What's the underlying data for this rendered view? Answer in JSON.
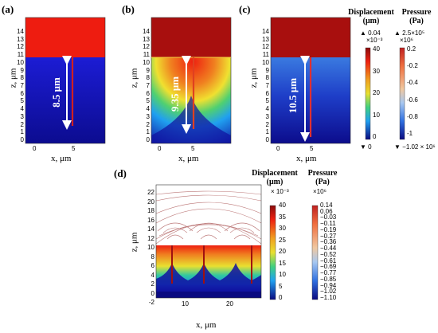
{
  "panels": {
    "a": {
      "label": "(a)",
      "xlabel": "x, μm",
      "ylabel": "z, μm",
      "yticks": [
        "0",
        "1",
        "2",
        "3",
        "4",
        "5",
        "6",
        "7",
        "8",
        "9",
        "10",
        "11",
        "12",
        "13",
        "14"
      ],
      "xticks": [
        "0",
        "5"
      ],
      "annotation": "8.5 μm"
    },
    "b": {
      "label": "(b)",
      "xlabel": "x, μm",
      "ylabel": "z, μm",
      "yticks": [
        "0",
        "1",
        "2",
        "3",
        "4",
        "5",
        "6",
        "7",
        "8",
        "9",
        "10",
        "11",
        "12",
        "13",
        "14"
      ],
      "xticks": [
        "0",
        "5"
      ],
      "annotation": "9.35 μm"
    },
    "c": {
      "label": "(c)",
      "xlabel": "x, μm",
      "ylabel": "z, μm",
      "yticks": [
        "0",
        "1",
        "2",
        "3",
        "4",
        "5",
        "6",
        "7",
        "8",
        "9",
        "10",
        "11",
        "12",
        "13",
        "14"
      ],
      "xticks": [
        "0",
        "5"
      ],
      "annotation": "10.5 μm"
    },
    "d": {
      "label": "(d)",
      "xlabel": "x, μm",
      "ylabel": "z, μm",
      "yticks": [
        "-2",
        "0",
        "2",
        "4",
        "6",
        "8",
        "10",
        "12",
        "14",
        "16",
        "18",
        "20",
        "22"
      ],
      "xticks": [
        "10",
        "20"
      ]
    }
  },
  "top_colorbars": {
    "displacement": {
      "title_line1": "Displacement",
      "title_line2": "(μm)",
      "max": "▲ 0.04",
      "scale": "×10⁻³",
      "ticks": [
        "40",
        "30",
        "20",
        "10",
        "0"
      ],
      "min": "▼ 0"
    },
    "pressure": {
      "title_line1": "Pressure",
      "title_line2": "(Pa)",
      "max": "▲ 2.5×10⁵",
      "scale": "×10⁶",
      "ticks": [
        "0.2",
        "-0.2",
        "-0.4",
        "-0.6",
        "-0.8",
        "-1"
      ],
      "min": "▼ −1.02 × 10⁶"
    }
  },
  "bottom_colorbars": {
    "displacement": {
      "title_line1": "Displacement",
      "title_line2": "(μm)",
      "scale": "× 10⁻³",
      "ticks": [
        "40",
        "35",
        "30",
        "25",
        "20",
        "15",
        "10",
        "5",
        "0"
      ]
    },
    "pressure": {
      "title_line1": "Pressure",
      "title_line2": "(Pa)",
      "scale": "×10⁶",
      "ticks": [
        "0.14",
        "0.06",
        "−0.03",
        "−0.11",
        "−0.19",
        "−0.27",
        "−0.36",
        "−0.44",
        "−0.52",
        "−0.61",
        "−0.69",
        "−0.77",
        "−0.85",
        "−0.94",
        "−1.02",
        "−1.10"
      ]
    }
  },
  "colors": {
    "red": "#ee1c10",
    "darkred": "#a80f0e",
    "blue": "#1818c8",
    "navy": "#0a0a80"
  }
}
